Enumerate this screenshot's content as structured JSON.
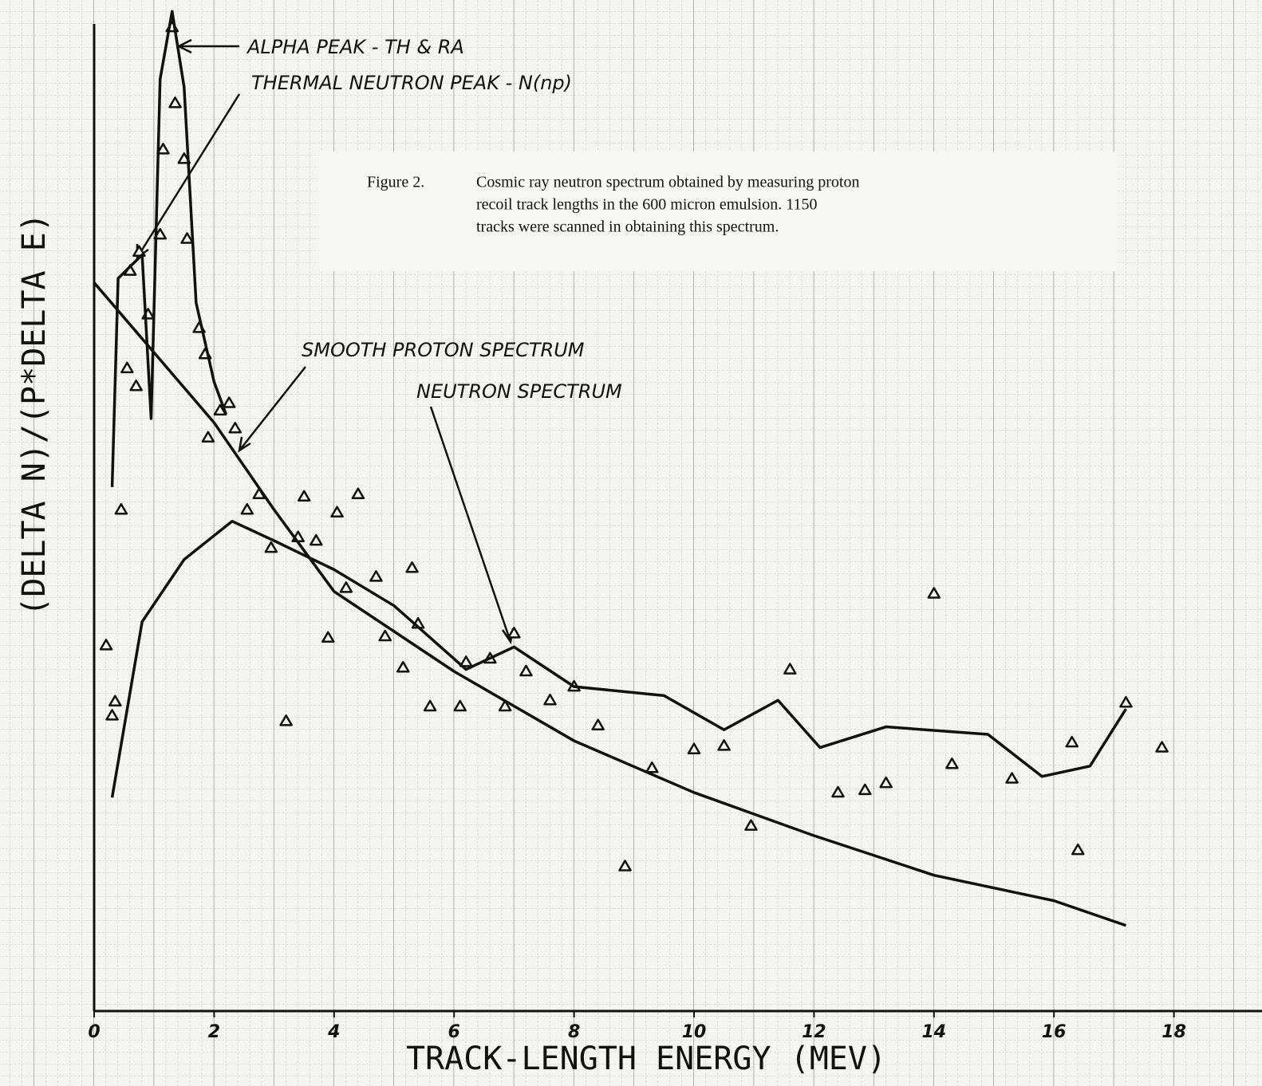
{
  "chart_data": {
    "type": "scatter",
    "xlabel": "TRACK-LENGTH ENERGY (MEV)",
    "ylabel": "(DELTA N)/(P*DELTA E)",
    "caption": [
      "Figure 2.",
      "Cosmic ray neutron spectrum obtained by measuring proton",
      "recoil track lengths in the 600 micron emulsion.  1150",
      "tracks were scanned in obtaining this spectrum."
    ],
    "annotations": [
      {
        "text": "ALPHA PEAK - TH & RA"
      },
      {
        "text": "THERMAL NEUTRON PEAK - N(np)"
      },
      {
        "text": "SMOOTH PROTON SPECTRUM"
      },
      {
        "text": "NEUTRON SPECTRUM"
      }
    ],
    "xlim": [
      0,
      18
    ],
    "xticks": [
      0,
      2,
      4,
      6,
      8,
      10,
      12,
      14,
      16,
      18
    ],
    "ylim": [
      1,
      2400
    ],
    "log_y": true,
    "series": [
      {
        "type": "scatter",
        "color": "#111111",
        "x": [
          0.2,
          0.35,
          0.3,
          0.45,
          0.55,
          0.7,
          0.6,
          0.75,
          0.9,
          1.1,
          1.15,
          1.3,
          1.35,
          1.5,
          1.55,
          1.75,
          1.85,
          2.1,
          2.25,
          1.9,
          2.35,
          2.55,
          2.75,
          2.95,
          3.2,
          3.4,
          3.5,
          3.7,
          3.9,
          4.05,
          4.2,
          4.4,
          4.7,
          4.85,
          5.15,
          5.3,
          5.4,
          5.6,
          6.1,
          6.2,
          6.6,
          6.85,
          7.0,
          7.2,
          7.6,
          8.0,
          8.4,
          8.85,
          9.3,
          10.0,
          10.5,
          10.95,
          11.6,
          12.4,
          12.85,
          13.2,
          14.0,
          14.3,
          15.3,
          16.3,
          16.4,
          17.2,
          17.8
        ],
        "values": [
          16.5,
          10.7,
          9.6,
          47,
          140,
          122,
          297,
          344,
          212,
          393,
          758,
          1945,
          1083,
          704,
          380,
          191,
          156,
          101,
          107,
          82,
          88,
          47,
          53,
          35,
          9.2,
          38,
          52,
          37,
          17.5,
          46,
          25.7,
          53,
          28,
          17.7,
          13.9,
          30,
          19.5,
          10.3,
          10.3,
          14.5,
          14.9,
          10.3,
          18.1,
          13.5,
          10.8,
          12,
          8.9,
          3.0,
          6.4,
          7.4,
          7.6,
          4.1,
          13.7,
          5.3,
          5.4,
          5.7,
          24.6,
          6.6,
          5.9,
          7.8,
          3.4,
          10.6,
          7.5
        ]
      },
      {
        "type": "line",
        "color": "#111111",
        "x": [
          0,
          2,
          3,
          4,
          6,
          8,
          10,
          12,
          14,
          16,
          17.2
        ],
        "values": [
          271,
          92,
          47,
          25,
          13.5,
          7.9,
          5.3,
          3.8,
          2.8,
          2.3,
          1.9
        ]
      },
      {
        "type": "line",
        "color": "#111111",
        "x": [
          0.3,
          0.8,
          1.5,
          2.3,
          3,
          4,
          5,
          6.2,
          7,
          8,
          9.5,
          10.5,
          11.4,
          12.1,
          13.2,
          14.9,
          15.8,
          16.6,
          17.2
        ],
        "values": [
          5.1,
          19.8,
          32,
          43,
          37,
          29.6,
          22.4,
          13.7,
          16.3,
          12,
          11.2,
          8.6,
          10.8,
          7.5,
          8.8,
          8.3,
          6.0,
          6.5,
          10.1
        ]
      },
      {
        "type": "line",
        "color": "#111111",
        "x": [
          0.3,
          0.4,
          0.8,
          0.95,
          1.1,
          1.3,
          1.5,
          1.7,
          2,
          2.2
        ],
        "values": [
          56,
          280,
          336,
          95,
          1303,
          2198,
          1225,
          232,
          126,
          98
        ]
      }
    ]
  }
}
